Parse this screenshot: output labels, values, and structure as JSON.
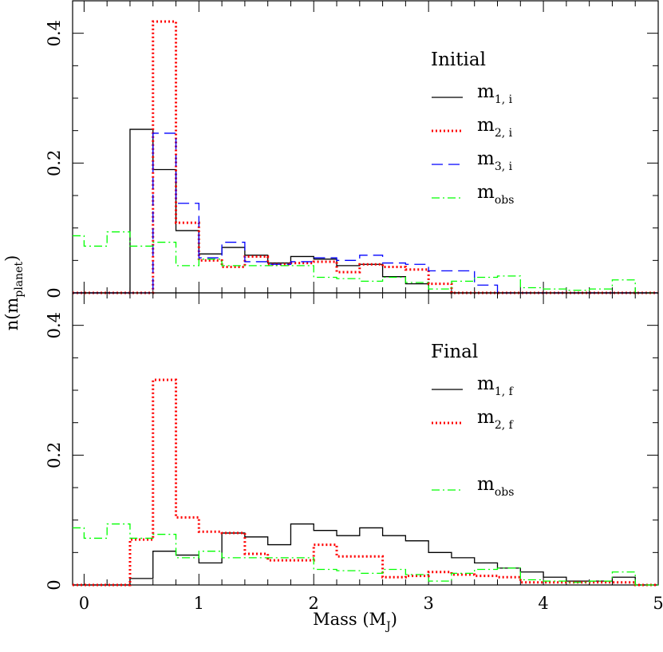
{
  "chart_data": [
    {
      "type": "step",
      "panel": "top",
      "legend_title": "Initial",
      "x_tick_labels": [
        "0",
        "1",
        "2",
        "3",
        "4",
        "5"
      ],
      "y_tick_labels": [
        "0",
        "0.2",
        "0.4"
      ],
      "xlim": [
        -0.1,
        5.0
      ],
      "ylim": [
        0,
        0.45
      ],
      "bin_edges": [
        -0.2,
        0.0,
        0.2,
        0.4,
        0.6,
        0.8,
        1.0,
        1.2,
        1.4,
        1.6,
        1.8,
        2.0,
        2.2,
        2.4,
        2.6,
        2.8,
        3.0,
        3.2,
        3.4,
        3.6,
        3.8,
        4.0,
        4.2,
        4.4,
        4.6,
        4.8,
        5.0
      ],
      "series": [
        {
          "name": "m1,i",
          "label_main": "m",
          "label_sub": "1, i",
          "color": "#000000",
          "dash": "none",
          "values": [
            0,
            0,
            0,
            0.252,
            0.19,
            0.096,
            0.06,
            0.07,
            0.058,
            0.046,
            0.056,
            0.052,
            0.042,
            0.044,
            0.025,
            0.014,
            0,
            0,
            0,
            0,
            0,
            0,
            0,
            0,
            0,
            0
          ]
        },
        {
          "name": "m2,i",
          "label_main": "m",
          "label_sub": "2, i",
          "color": "#ff0000",
          "dash": "2,3",
          "values": [
            0,
            0,
            0,
            0,
            0.418,
            0.108,
            0.05,
            0.04,
            0.056,
            0.044,
            0.046,
            0.048,
            0.032,
            0.044,
            0.04,
            0.036,
            0.014,
            0,
            0,
            0,
            0,
            0,
            0,
            0,
            0,
            0
          ]
        },
        {
          "name": "m3,i",
          "label_main": "m",
          "label_sub": "3, i",
          "color": "#0000ff",
          "dash": "14,7",
          "values": [
            0,
            0,
            0,
            0,
            0.246,
            0.138,
            0.054,
            0.078,
            0.048,
            0.044,
            0.048,
            0.054,
            0.05,
            0.058,
            0.046,
            0.044,
            0.034,
            0.034,
            0.012,
            0,
            0,
            0,
            0,
            0,
            0,
            0
          ]
        },
        {
          "name": "mobs",
          "label_main": "m",
          "label_sub": "obs",
          "color": "#00ff00",
          "dash": "10,4,2,4",
          "values": [
            0.088,
            0.072,
            0.094,
            0.072,
            0.078,
            0.042,
            0.052,
            0.042,
            0.042,
            0.042,
            0.042,
            0.024,
            0.022,
            0.018,
            0.024,
            0.016,
            0.006,
            0.018,
            0.024,
            0.026,
            0.008,
            0.006,
            0.004,
            0.006,
            0.02,
            0
          ]
        }
      ]
    },
    {
      "type": "step",
      "panel": "bottom",
      "legend_title": "Final",
      "x_tick_labels": [
        "0",
        "1",
        "2",
        "3",
        "4",
        "5"
      ],
      "y_tick_labels": [
        "0",
        "0.2",
        "0.4"
      ],
      "xlabel_main": "Mass (M",
      "xlabel_sub": "J",
      "xlabel_end": ")",
      "xlim": [
        -0.1,
        5.0
      ],
      "ylim": [
        0,
        0.45
      ],
      "bin_edges": [
        -0.2,
        0.0,
        0.2,
        0.4,
        0.6,
        0.8,
        1.0,
        1.2,
        1.4,
        1.6,
        1.8,
        2.0,
        2.2,
        2.4,
        2.6,
        2.8,
        3.0,
        3.2,
        3.4,
        3.6,
        3.8,
        4.0,
        4.2,
        4.4,
        4.6,
        4.8,
        5.0
      ],
      "series": [
        {
          "name": "m1,f",
          "label_main": "m",
          "label_sub": "1, f",
          "color": "#000000",
          "dash": "none",
          "values": [
            0,
            0,
            0,
            0.01,
            0.052,
            0.046,
            0.034,
            0.08,
            0.074,
            0.062,
            0.094,
            0.084,
            0.076,
            0.088,
            0.076,
            0.068,
            0.05,
            0.042,
            0.034,
            0.026,
            0.02,
            0.012,
            0.006,
            0.006,
            0.012,
            0
          ]
        },
        {
          "name": "m2,f",
          "label_main": "m",
          "label_sub": "2, f",
          "color": "#ff0000",
          "dash": "2,3",
          "values": [
            0,
            0,
            0,
            0.07,
            0.316,
            0.104,
            0.082,
            0.08,
            0.048,
            0.038,
            0.038,
            0.062,
            0.044,
            0.044,
            0.012,
            0.014,
            0.02,
            0.016,
            0.014,
            0.012,
            0.004,
            0.004,
            0.004,
            0.004,
            0.004,
            0
          ]
        },
        {
          "name": "mobs",
          "label_main": "m",
          "label_sub": "obs",
          "color": "#00ff00",
          "dash": "10,4,2,4",
          "values": [
            0.088,
            0.072,
            0.094,
            0.072,
            0.078,
            0.042,
            0.052,
            0.042,
            0.042,
            0.042,
            0.042,
            0.024,
            0.022,
            0.018,
            0.024,
            0.016,
            0.006,
            0.018,
            0.024,
            0.026,
            0.008,
            0.006,
            0.004,
            0.006,
            0.02,
            0
          ]
        }
      ]
    }
  ],
  "ylabel_main": "n(m",
  "ylabel_sub": "planet",
  "ylabel_end": ")"
}
